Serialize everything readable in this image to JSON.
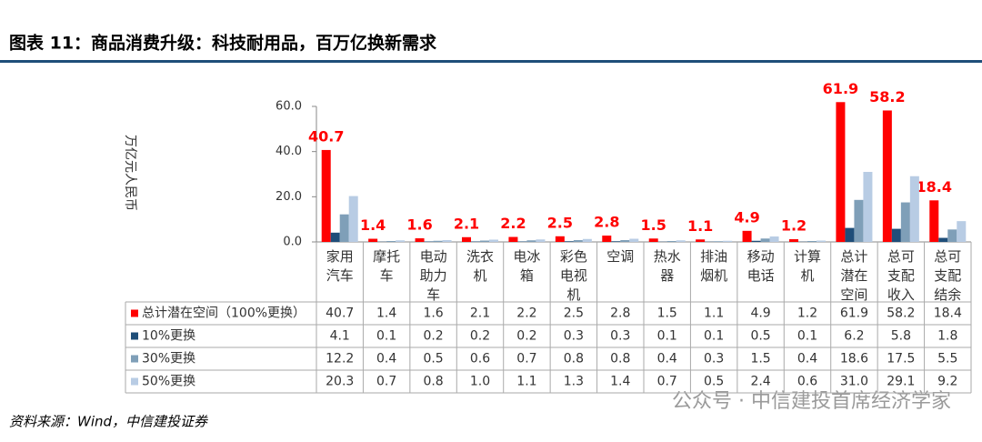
{
  "chart_data": {
    "type": "bar",
    "title": "图表 11：商品消费升级：科技耐用品，百万亿换新需求",
    "ylabel": "万亿元人民币",
    "source": "资料来源：Wind，中信建投证券",
    "watermark": "公众号 · 中信建投首席经济学家",
    "categories": [
      "家用汽车",
      "摩托车",
      "电动助力车",
      "洗衣机",
      "电冰箱",
      "彩色电视机",
      "空调",
      "热水器",
      "排油烟机",
      "移动电话",
      "计算机",
      "总计潜在空间",
      "总可支配收入",
      "总可支配结余"
    ],
    "series": [
      {
        "name": "总计潜在空间（100%更换）",
        "color": "#ff0000",
        "values": [
          40.7,
          1.4,
          1.6,
          2.1,
          2.2,
          2.5,
          2.8,
          1.5,
          1.1,
          4.9,
          1.2,
          61.9,
          58.2,
          18.4
        ],
        "value_labels": [
          "40.7",
          "1.4",
          "1.6",
          "2.1",
          "2.2",
          "2.5",
          "2.8",
          "1.5",
          "1.1",
          "4.9",
          "1.2",
          "61.9",
          "58.2",
          "18.4"
        ]
      },
      {
        "name": "10%更换",
        "color": "#1f4e79",
        "values": [
          4.1,
          0.1,
          0.2,
          0.2,
          0.2,
          0.3,
          0.3,
          0.1,
          0.1,
          0.5,
          0.1,
          6.2,
          5.8,
          1.8
        ],
        "value_labels": [
          "4.1",
          "0.1",
          "0.2",
          "0.2",
          "0.2",
          "0.3",
          "0.3",
          "0.1",
          "0.1",
          "0.5",
          "0.1",
          "6.2",
          "5.8",
          "1.8"
        ]
      },
      {
        "name": "30%更换",
        "color": "#7f9fb8",
        "values": [
          12.2,
          0.4,
          0.5,
          0.6,
          0.7,
          0.8,
          0.8,
          0.4,
          0.3,
          1.5,
          0.4,
          18.6,
          17.5,
          5.5
        ],
        "value_labels": [
          "12.2",
          "0.4",
          "0.5",
          "0.6",
          "0.7",
          "0.8",
          "0.8",
          "0.4",
          "0.3",
          "1.5",
          "0.4",
          "18.6",
          "17.5",
          "5.5"
        ]
      },
      {
        "name": "50%更换",
        "color": "#b8cce4",
        "values": [
          20.3,
          0.7,
          0.8,
          1.0,
          1.1,
          1.3,
          1.4,
          0.7,
          0.5,
          2.4,
          0.6,
          31.0,
          29.1,
          9.2
        ],
        "value_labels": [
          "20.3",
          "0.7",
          "0.8",
          "1.0",
          "1.1",
          "1.3",
          "1.4",
          "0.7",
          "0.5",
          "2.4",
          "0.6",
          "31.0",
          "29.1",
          "9.2"
        ]
      }
    ],
    "ylim": [
      0,
      60
    ],
    "yticks": [
      {
        "value": 0,
        "label": "0.0"
      },
      {
        "value": 20,
        "label": "20.0"
      },
      {
        "value": 40,
        "label": "40.0"
      },
      {
        "value": 60,
        "label": "60.0"
      }
    ],
    "grid": false
  }
}
